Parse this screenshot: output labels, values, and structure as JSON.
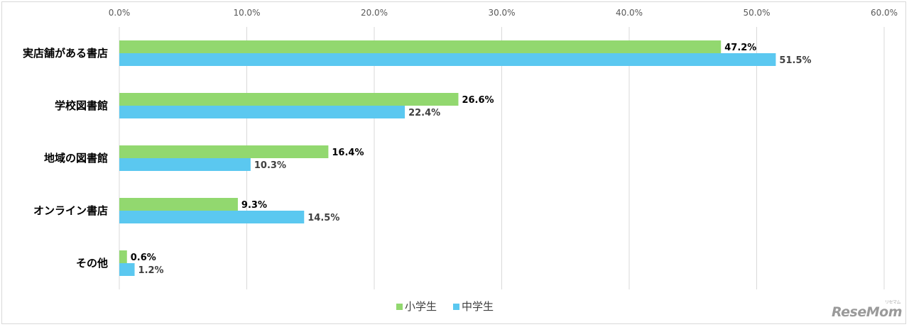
{
  "chart_data": {
    "type": "bar",
    "orientation": "horizontal",
    "categories": [
      "実店舗がある書店",
      "学校図書館",
      "地域の図書館",
      "オンライン書店",
      "その他"
    ],
    "series": [
      {
        "name": "小学生",
        "values": [
          47.2,
          26.6,
          16.4,
          9.3,
          0.6
        ],
        "labels": [
          "47.2%",
          "26.6%",
          "16.4%",
          "9.3%",
          "0.6%"
        ],
        "color": "#92d86f"
      },
      {
        "name": "中学生",
        "values": [
          51.5,
          22.4,
          10.3,
          14.5,
          1.2
        ],
        "labels": [
          "51.5%",
          "22.4%",
          "10.3%",
          "14.5%",
          "1.2%"
        ],
        "color": "#5bc8f0"
      }
    ],
    "xlim": [
      0,
      60
    ],
    "xticks": [
      0,
      10,
      20,
      30,
      40,
      50,
      60
    ],
    "xtick_labels": [
      "0.0%",
      "10.0%",
      "20.0%",
      "30.0%",
      "40.0%",
      "50.0%",
      "60.0%"
    ],
    "grid": true,
    "legend_position": "bottom"
  },
  "watermark": {
    "text": "ReseMom",
    "ruby": "リセマム"
  }
}
